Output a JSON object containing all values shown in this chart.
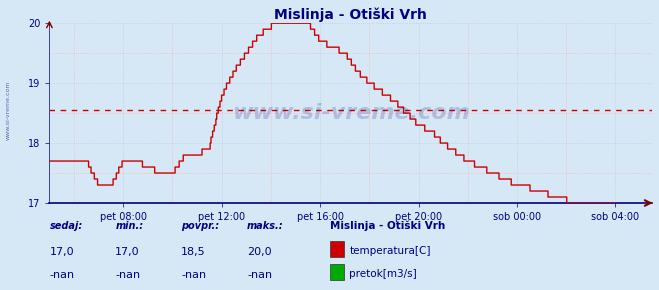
{
  "title": "Mislinja - Otiški Vrh",
  "title_color": "#000080",
  "title_fontsize": 10,
  "bg_color": "#d6e8f5",
  "plot_bg_color": "#d6e8f5",
  "line_color": "#cc0000",
  "avg_line_color": "#cc0000",
  "avg_value": 18.55,
  "ylim": [
    17,
    20
  ],
  "yticks": [
    17,
    18,
    19,
    20
  ],
  "tick_label_color": "#000080",
  "grid_color_pink": "#ffaaaa",
  "grid_color_blue": "#aaaacc",
  "watermark": "www.si-vreme.com",
  "watermark_color": "#000080",
  "watermark_alpha": 0.18,
  "xtick_labels": [
    "pet 08:00",
    "pet 12:00",
    "pet 16:00",
    "pet 20:00",
    "sob 00:00",
    "sob 04:00"
  ],
  "legend_title": "Mislinja - Otiški Vrh",
  "legend_items": [
    "temperatura[C]",
    "pretok[m3/s]"
  ],
  "legend_colors": [
    "#cc0000",
    "#00aa00"
  ],
  "footer_labels": [
    "sedaj:",
    "min.:",
    "povpr.:",
    "maks.:"
  ],
  "footer_values_row1": [
    "17,0",
    "17,0",
    "18,5",
    "20,0"
  ],
  "footer_values_row2": [
    "-nan",
    "-nan",
    "-nan",
    "-nan"
  ],
  "footer_color": "#000080",
  "axis_color": "#000080",
  "arrow_color": "#800000",
  "left_watermark": "www.si-vreme.com"
}
